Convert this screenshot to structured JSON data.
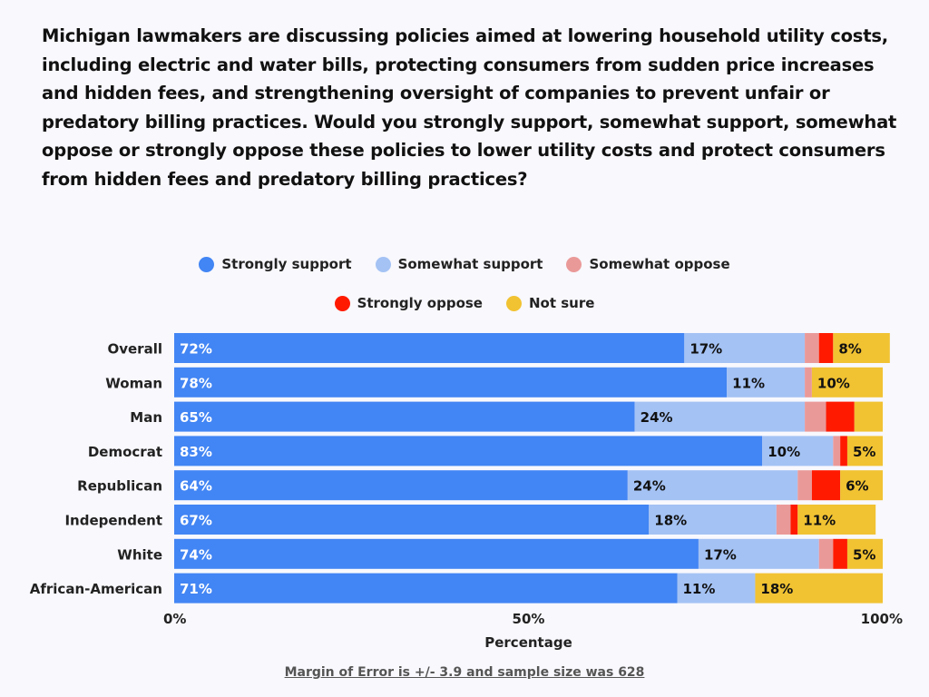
{
  "chart_data": {
    "type": "bar",
    "orientation": "horizontal",
    "stacked": true,
    "title": "Michigan lawmakers are discussing policies aimed at lowering household utility costs, including electric and water bills, protecting consumers from sudden price increases and hidden fees, and strengthening oversight of companies to prevent unfair or predatory billing practices. Would you strongly support, somewhat support, somewhat oppose or strongly oppose these policies to lower utility costs and protect consumers from hidden fees and predatory billing practices?",
    "xlabel": "Percentage",
    "ylabel": "",
    "xlim": [
      0,
      100
    ],
    "xticks": [
      "0%",
      "50%",
      "100%"
    ],
    "grid": false,
    "legend_position": "top",
    "categories": [
      "Overall",
      "Woman",
      "Man",
      "Democrat",
      "Republican",
      "Independent",
      "White",
      "African-American"
    ],
    "series": [
      {
        "name": "Strongly support",
        "color": "#4285f4",
        "label_color": "#ffffff",
        "values": [
          72,
          78,
          65,
          83,
          64,
          67,
          74,
          71
        ]
      },
      {
        "name": "Somewhat support",
        "color": "#a4c2f4",
        "label_color": "#111111",
        "values": [
          17,
          11,
          24,
          10,
          24,
          18,
          17,
          11
        ]
      },
      {
        "name": "Somewhat oppose",
        "color": "#ea9999",
        "label_color": "#111111",
        "values": [
          2,
          1,
          3,
          1,
          2,
          2,
          2,
          0
        ]
      },
      {
        "name": "Strongly oppose",
        "color": "#ff1a00",
        "label_color": "#111111",
        "values": [
          2,
          0,
          4,
          1,
          4,
          1,
          2,
          0
        ]
      },
      {
        "name": "Not sure",
        "color": "#f1c232",
        "label_color": "#111111",
        "values": [
          8,
          10,
          4,
          5,
          6,
          11,
          5,
          18
        ]
      }
    ]
  },
  "footer": "Margin of Error is +/- 3.9 and sample size was 628"
}
